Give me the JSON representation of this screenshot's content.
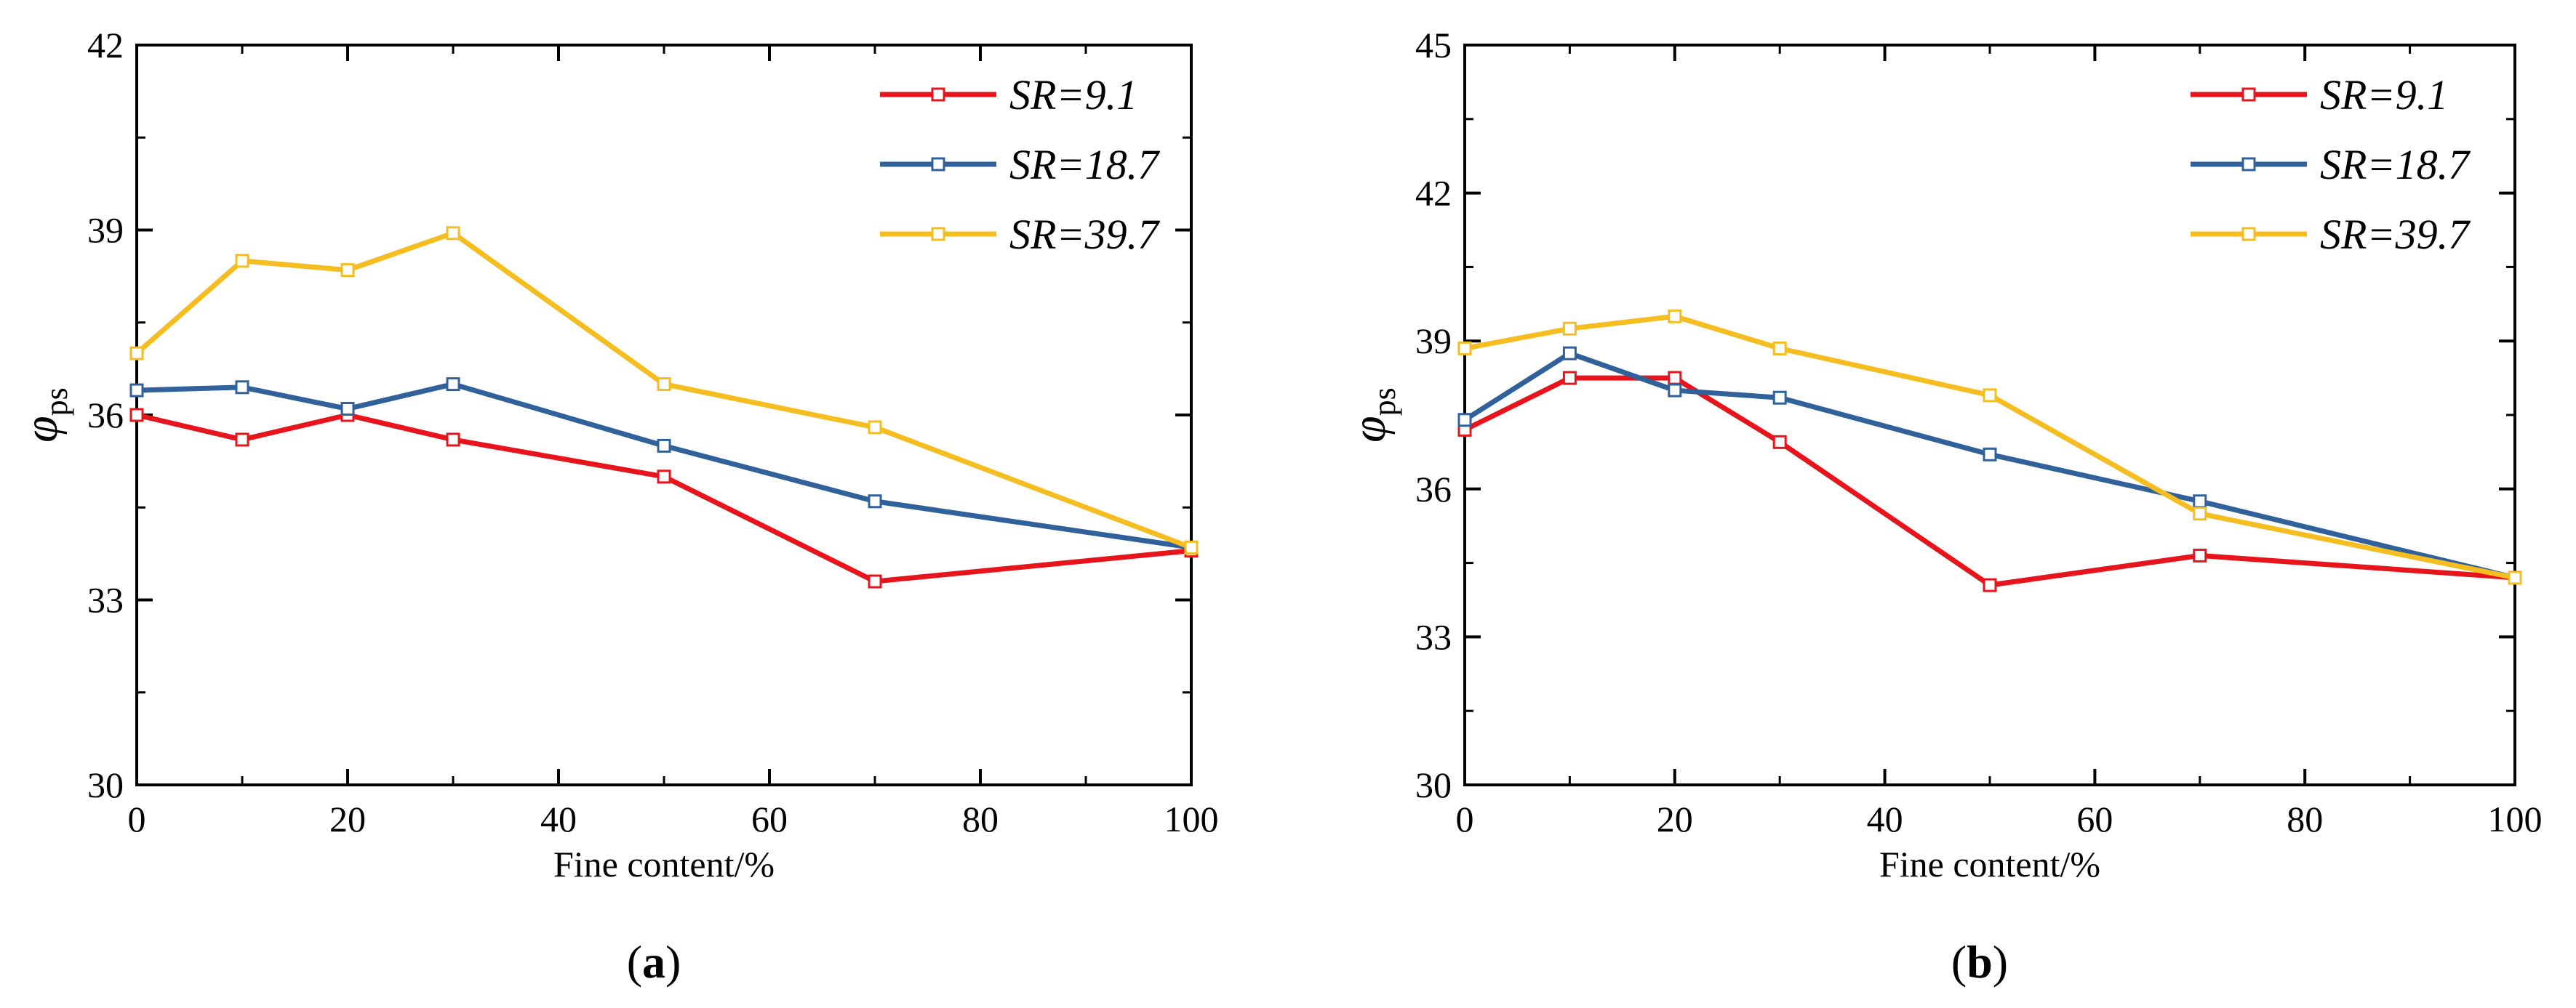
{
  "chart_data": [
    {
      "type": "line",
      "panel_label": "a",
      "xlabel": "Fine content/%",
      "ylabel_symbol": "φ",
      "ylabel_subscript": "ps",
      "xlim": [
        0,
        100
      ],
      "ylim": [
        30,
        42
      ],
      "xticks": [
        0,
        20,
        40,
        60,
        80,
        100
      ],
      "yticks": [
        30,
        33,
        36,
        39,
        42
      ],
      "legend_position": "top-right",
      "x": [
        0,
        10,
        20,
        30,
        50,
        70,
        100
      ],
      "series": [
        {
          "name": "SR=9.1",
          "color": "#e8141c",
          "values": [
            36.0,
            35.6,
            36.0,
            35.6,
            35.0,
            33.3,
            33.8
          ]
        },
        {
          "name": "SR=18.7",
          "color": "#30619b",
          "values": [
            36.4,
            36.45,
            36.1,
            36.5,
            35.5,
            34.6,
            33.85
          ]
        },
        {
          "name": "SR=39.7",
          "color": "#f5bd1f",
          "values": [
            37.0,
            38.5,
            38.35,
            38.95,
            36.5,
            35.8,
            33.85
          ]
        }
      ]
    },
    {
      "type": "line",
      "panel_label": "b",
      "xlabel": "Fine content/%",
      "ylabel_symbol": "φ",
      "ylabel_subscript": "ps",
      "xlim": [
        0,
        100
      ],
      "ylim": [
        30,
        45
      ],
      "xticks": [
        0,
        20,
        40,
        60,
        80,
        100
      ],
      "yticks": [
        30,
        33,
        36,
        39,
        42,
        45
      ],
      "legend_position": "top-right",
      "x": [
        0,
        10,
        20,
        30,
        50,
        70,
        100
      ],
      "series": [
        {
          "name": "SR=9.1",
          "color": "#e8141c",
          "values": [
            37.2,
            38.25,
            38.25,
            36.95,
            34.05,
            34.65,
            34.2
          ]
        },
        {
          "name": "SR=18.7",
          "color": "#30619b",
          "values": [
            37.4,
            38.75,
            38.0,
            37.85,
            36.7,
            35.75,
            34.2
          ]
        },
        {
          "name": "SR=39.7",
          "color": "#f5bd1f",
          "values": [
            38.85,
            39.25,
            39.5,
            38.85,
            37.9,
            35.5,
            34.2
          ]
        }
      ]
    }
  ]
}
